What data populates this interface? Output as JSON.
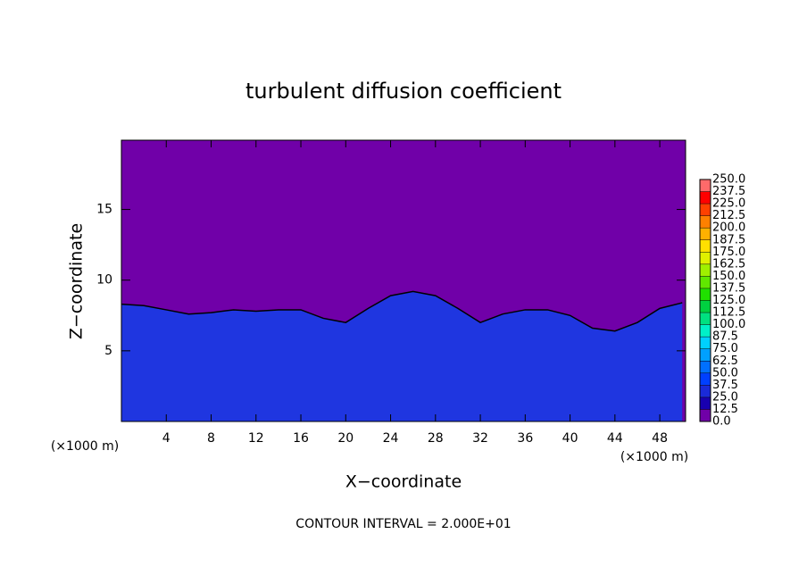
{
  "chart_data": {
    "type": "contour",
    "title": "turbulent diffusion coefficient",
    "x_label": "X−coordinate",
    "y_label": "Z−coordinate",
    "x_unit_left": "(×1000 m)",
    "x_unit_right": "(×1000 m)",
    "footnote": "CONTOUR INTERVAL = 2.000E+01",
    "background_color": "#7000a8",
    "xlim": [
      0,
      50.3
    ],
    "ylim": [
      0,
      19.9
    ],
    "xticks": [
      4,
      8,
      12,
      16,
      20,
      24,
      28,
      32,
      36,
      40,
      44,
      48
    ],
    "yticks": [
      5,
      10,
      15
    ],
    "x": [
      0,
      2,
      4,
      6,
      8,
      10,
      12,
      14,
      16,
      18,
      20,
      22,
      24,
      26,
      28,
      30,
      32,
      34,
      36,
      38,
      40,
      42,
      44,
      46,
      48,
      50
    ],
    "series": [
      {
        "color": "#1f36e0",
        "values": [
          8.3,
          8.2,
          7.9,
          7.6,
          7.7,
          7.9,
          7.8,
          7.9,
          7.9,
          7.3,
          7.0,
          8.0,
          8.9,
          9.2,
          8.9,
          8.0,
          7.0,
          7.6,
          7.9,
          7.9,
          7.5,
          6.6,
          6.4,
          7.0,
          8.0,
          8.4
        ]
      }
    ],
    "colorbar": {
      "levels": [
        {
          "value": 0,
          "label": "0.0"
        },
        12.5,
        {
          "value": 25,
          "label": "25.0"
        },
        37.5,
        {
          "value": 50,
          "label": "50.0"
        },
        62.5,
        {
          "value": 75,
          "label": "75.0"
        },
        87.5,
        {
          "value": 100,
          "label": "100.0"
        },
        112.5,
        {
          "value": 125,
          "label": "125.0"
        },
        137.5,
        {
          "value": 150,
          "label": "150.0"
        },
        162.5,
        {
          "value": 175,
          "label": "175.0"
        },
        187.5,
        {
          "value": 200,
          "label": "200.0"
        },
        212.5,
        {
          "value": 225,
          "label": "225.0"
        },
        237.5,
        {
          "value": 250,
          "label": "250.0"
        }
      ],
      "colors": [
        "#7000a8",
        "#1800b0",
        "#1a2ad8",
        "#0040ff",
        "#0070ff",
        "#00a0ff",
        "#00d0ff",
        "#00f0c8",
        "#00e080",
        "#00d040",
        "#20e000",
        "#60e800",
        "#a0f000",
        "#e0f000",
        "#ffe000",
        "#ffb000",
        "#ff8000",
        "#ff4000",
        "#ff0000",
        "#ff6a6a"
      ]
    }
  }
}
